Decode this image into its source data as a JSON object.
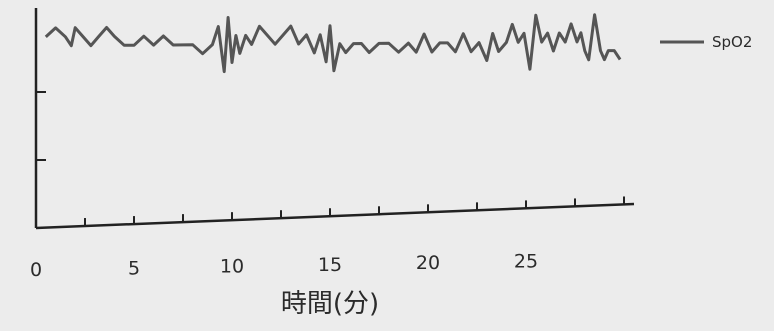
{
  "chart_data": {
    "type": "line",
    "title": "",
    "xlabel": "時間(分)",
    "ylabel": "",
    "xlim": [
      0,
      30.5
    ],
    "x_ticks": [
      0,
      5,
      10,
      15,
      20,
      25
    ],
    "x_tick_labels": [
      "0",
      "5",
      "10",
      "15",
      "20",
      "25"
    ],
    "x_minor_ticks": [
      0,
      2.5,
      5,
      7.5,
      10,
      12.5,
      15,
      17.5,
      20,
      22.5,
      25,
      27.5,
      30
    ],
    "grid": false,
    "legend": "right",
    "colors": {
      "line": "#555555",
      "axis": "#222222",
      "background": "#ececec"
    },
    "series": [
      {
        "name": "SpO2",
        "x": [
          0.5,
          1.0,
          1.5,
          1.8,
          2.0,
          2.4,
          2.8,
          3.2,
          3.6,
          4.0,
          4.5,
          5.0,
          5.5,
          6.0,
          6.5,
          7.0,
          7.5,
          8.0,
          8.5,
          9.0,
          9.3,
          9.6,
          9.8,
          10.0,
          10.2,
          10.4,
          10.7,
          11.0,
          11.4,
          11.8,
          12.2,
          12.6,
          13.0,
          13.4,
          13.8,
          14.2,
          14.5,
          14.8,
          15.0,
          15.2,
          15.5,
          15.8,
          16.2,
          16.6,
          17.0,
          17.5,
          18.0,
          18.5,
          19.0,
          19.4,
          19.8,
          20.2,
          20.6,
          21.0,
          21.4,
          21.8,
          22.2,
          22.6,
          23.0,
          23.3,
          23.6,
          24.0,
          24.3,
          24.6,
          24.9,
          25.2,
          25.5,
          25.8,
          26.1,
          26.4,
          26.7,
          27.0,
          27.3,
          27.6,
          27.8,
          28.0,
          28.2,
          28.5,
          28.8,
          29.0,
          29.2,
          29.5,
          29.8
        ],
        "y": [
          97,
          98,
          97,
          96,
          98,
          97,
          96,
          97,
          98,
          97,
          96,
          96,
          97,
          96,
          97,
          96,
          96,
          96,
          95,
          96,
          98,
          93,
          99,
          94,
          97,
          95,
          97,
          96,
          98,
          97,
          96,
          97,
          98,
          96,
          97,
          95,
          97,
          94,
          98,
          93,
          96,
          95,
          96,
          96,
          95,
          96,
          96,
          95,
          96,
          95,
          97,
          95,
          96,
          96,
          95,
          97,
          95,
          96,
          94,
          97,
          95,
          96,
          98,
          96,
          97,
          93,
          99,
          96,
          97,
          95,
          97,
          96,
          98,
          96,
          97,
          95,
          94,
          99,
          95,
          94,
          95,
          95,
          94
        ]
      }
    ]
  }
}
